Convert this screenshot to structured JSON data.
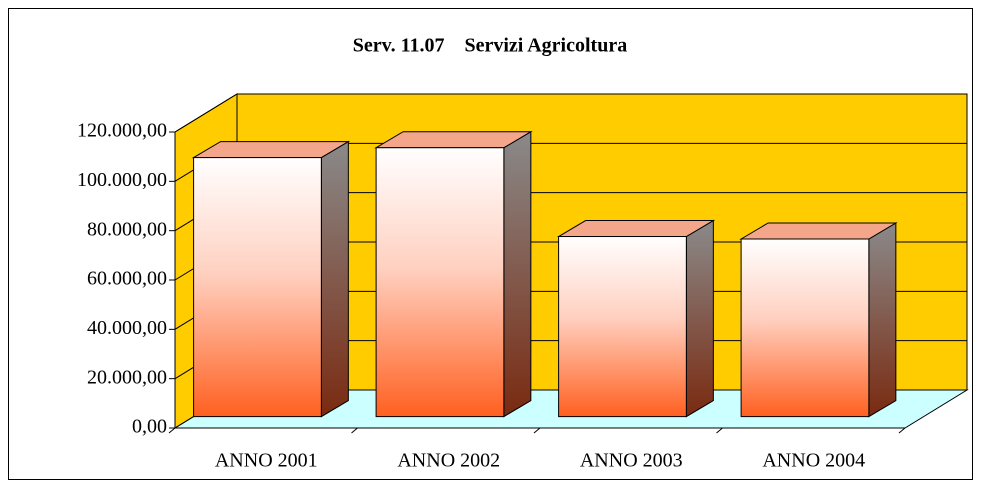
{
  "chart_data": {
    "type": "bar3d",
    "title": "Serv. 11.07    Servizi Agricoltura",
    "categories": [
      "ANNO 2001",
      "ANNO 2002",
      "ANNO 2003",
      "ANNO 2004"
    ],
    "values": [
      105000,
      109000,
      73000,
      72000
    ],
    "ylim": [
      0,
      120000
    ],
    "yticks": [
      {
        "value": 0,
        "label": "0,00"
      },
      {
        "value": 20000,
        "label": "20.000,00"
      },
      {
        "value": 40000,
        "label": "40.000,00"
      },
      {
        "value": 60000,
        "label": "60.000,00"
      },
      {
        "value": 80000,
        "label": "80.000,00"
      },
      {
        "value": 100000,
        "label": "100.000,00"
      },
      {
        "value": 120000,
        "label": "120.000,00"
      }
    ],
    "grid": true,
    "wall_color": "#ffcc00",
    "floor_color": "#ccffff",
    "color": "#ff6a2a"
  }
}
